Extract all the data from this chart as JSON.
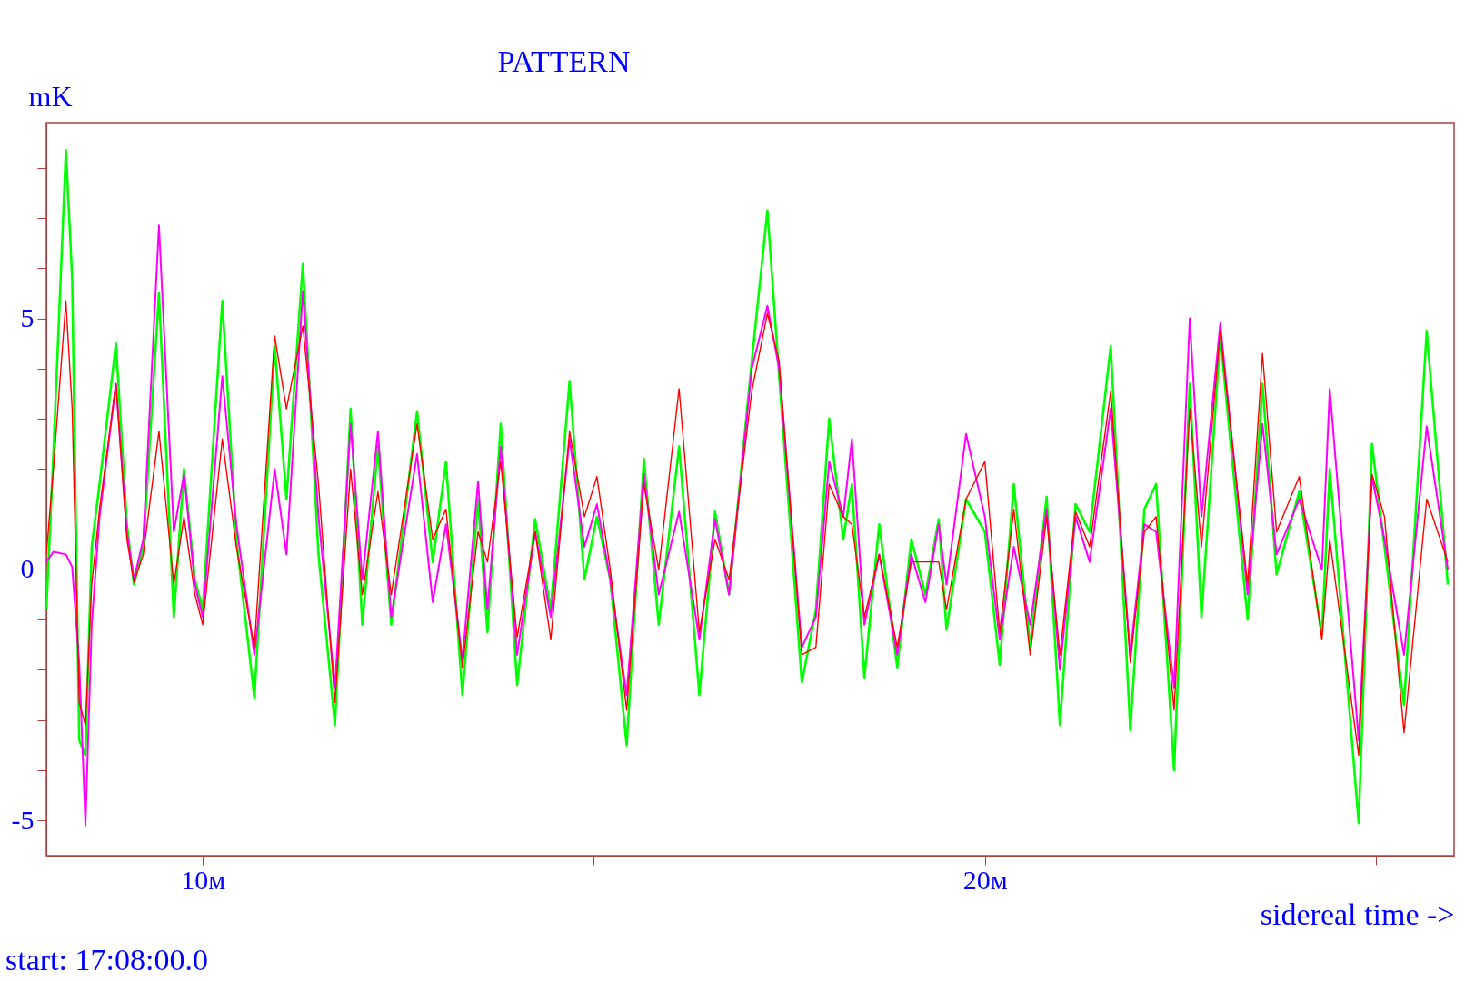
{
  "chart_data": {
    "type": "line",
    "title": "PATTERN",
    "ylabel": "mK",
    "xlabel": "sidereal time ->",
    "annotations": [
      "start: 17:08:00.0"
    ],
    "xlim": [
      8,
      26
    ],
    "ylim": [
      -5.7,
      8.9
    ],
    "xticks": [
      {
        "value": 10,
        "label": "10м"
      },
      {
        "value": 15,
        "label": null
      },
      {
        "value": 20,
        "label": "20м"
      },
      {
        "value": 25,
        "label": null
      }
    ],
    "yticks": [
      {
        "value": -5,
        "label": "-5"
      },
      {
        "value": -4,
        "label": null
      },
      {
        "value": -3,
        "label": null
      },
      {
        "value": -2,
        "label": null
      },
      {
        "value": -1,
        "label": null
      },
      0,
      {
        "value": 1,
        "label": null
      },
      {
        "value": 2,
        "label": null
      },
      {
        "value": 3,
        "label": null
      },
      {
        "value": 4,
        "label": null
      },
      5,
      {
        "value": 6,
        "label": null
      },
      {
        "value": 7,
        "label": null
      },
      {
        "value": 8,
        "label": null
      }
    ],
    "x": [
      8.0,
      8.09,
      8.25,
      8.33,
      8.42,
      8.5,
      8.58,
      8.68,
      8.89,
      9.03,
      9.12,
      9.24,
      9.44,
      9.63,
      9.76,
      9.9,
      10.0,
      10.25,
      10.43,
      10.66,
      10.92,
      11.07,
      11.28,
      11.48,
      11.69,
      11.89,
      12.04,
      12.24,
      12.41,
      12.74,
      12.94,
      13.11,
      13.32,
      13.52,
      13.64,
      13.81,
      14.02,
      14.25,
      14.45,
      14.69,
      14.88,
      15.04,
      15.21,
      15.42,
      15.64,
      15.83,
      16.09,
      16.35,
      16.55,
      16.73,
      17.02,
      17.22,
      17.37,
      17.66,
      17.84,
      18.01,
      18.19,
      18.3,
      18.46,
      18.65,
      18.88,
      19.06,
      19.24,
      19.41,
      19.51,
      19.76,
      20.0,
      20.19,
      20.37,
      20.58,
      20.79,
      20.96,
      21.16,
      21.34,
      21.61,
      21.86,
      22.04,
      22.19,
      22.42,
      22.62,
      22.77,
      23.01,
      23.36,
      23.55,
      23.73,
      24.02,
      24.31,
      24.41,
      24.78,
      24.95,
      25.11,
      25.36,
      25.65,
      25.92
    ],
    "series": [
      {
        "color": "#00ff00",
        "values": [
          -0.8,
          2.3,
          8.35,
          5.8,
          -3.4,
          -3.7,
          0.45,
          1.7,
          4.5,
          0.9,
          -0.3,
          0.45,
          5.5,
          -0.95,
          2.0,
          -0.2,
          -0.8,
          5.35,
          0.6,
          -2.55,
          4.45,
          1.4,
          6.1,
          0.3,
          -3.1,
          3.2,
          -1.1,
          2.45,
          -1.1,
          3.15,
          0.15,
          2.15,
          -2.5,
          1.4,
          -1.25,
          2.9,
          -2.3,
          1.0,
          -0.8,
          3.75,
          -0.2,
          1.05,
          -0.2,
          -3.5,
          2.2,
          -1.1,
          2.45,
          -2.5,
          1.15,
          -0.5,
          4.15,
          7.15,
          3.85,
          -2.25,
          -0.8,
          3.0,
          0.6,
          1.7,
          -2.15,
          0.9,
          -1.95,
          0.6,
          -0.5,
          1.0,
          -1.2,
          1.4,
          0.75,
          -1.9,
          1.7,
          -1.55,
          1.45,
          -3.1,
          1.3,
          0.75,
          4.45,
          -3.2,
          1.2,
          1.7,
          -4.0,
          3.7,
          -0.95,
          4.65,
          -1.0,
          3.7,
          -0.1,
          1.55,
          -1.3,
          2.0,
          -5.05,
          2.5,
          0.45,
          -2.7,
          4.75,
          -0.3
        ]
      },
      {
        "color": "#ff00ff",
        "values": [
          0.15,
          0.35,
          0.3,
          0.05,
          -1.85,
          -5.1,
          -1.1,
          1.05,
          3.7,
          0.75,
          -0.2,
          0.6,
          6.85,
          0.75,
          1.9,
          -0.3,
          -0.95,
          3.85,
          0.9,
          -1.7,
          2.0,
          0.3,
          5.55,
          1.05,
          -2.35,
          2.9,
          -0.2,
          2.75,
          -0.95,
          2.3,
          -0.65,
          0.9,
          -1.8,
          1.75,
          -0.8,
          2.45,
          -1.7,
          0.75,
          -0.95,
          2.6,
          0.45,
          1.3,
          -0.2,
          -2.5,
          1.9,
          -0.5,
          1.15,
          -1.4,
          1.0,
          -0.5,
          4.0,
          5.25,
          4.0,
          -1.55,
          -0.95,
          2.15,
          1.05,
          2.6,
          -1.1,
          0.3,
          -1.7,
          0.3,
          -0.65,
          0.9,
          -0.3,
          2.7,
          1.05,
          -1.4,
          0.45,
          -1.1,
          1.2,
          -2.0,
          1.05,
          0.15,
          3.2,
          -1.7,
          0.9,
          0.75,
          -2.35,
          5.0,
          1.05,
          4.9,
          -0.5,
          2.9,
          0.3,
          1.4,
          0,
          3.6,
          -3.4,
          1.85,
          0.6,
          -1.7,
          2.85,
          0
        ]
      },
      {
        "color": "#ff0000",
        "values": [
          0.3,
          2.0,
          5.35,
          3.2,
          -2.65,
          -3.1,
          -0.3,
          1.2,
          3.7,
          0.6,
          -0.25,
          0.3,
          2.75,
          -0.3,
          1.05,
          -0.5,
          -1.1,
          2.6,
          0.45,
          -1.55,
          4.65,
          3.2,
          4.85,
          1.7,
          -2.65,
          2.0,
          -0.5,
          1.55,
          -0.5,
          2.9,
          0.6,
          1.2,
          -1.95,
          0.75,
          0.15,
          2.15,
          -1.35,
          0.75,
          -1.4,
          2.75,
          1.05,
          1.85,
          0,
          -2.8,
          1.7,
          0,
          3.6,
          -1.25,
          0.6,
          -0.2,
          3.55,
          5.1,
          4.15,
          -1.7,
          -1.55,
          1.7,
          1.05,
          0.9,
          -0.95,
          0.3,
          -1.55,
          0.15,
          0.15,
          0.15,
          -0.8,
          1.4,
          2.15,
          -1.25,
          1.2,
          -1.7,
          1.05,
          -1.7,
          1.15,
          0.45,
          3.55,
          -1.85,
          0.75,
          1.05,
          -2.8,
          3.2,
          0.45,
          4.75,
          -0.3,
          4.3,
          0.75,
          1.85,
          -1.4,
          0.6,
          -3.7,
          1.9,
          1.05,
          -3.25,
          1.4,
          0.15
        ]
      }
    ]
  }
}
